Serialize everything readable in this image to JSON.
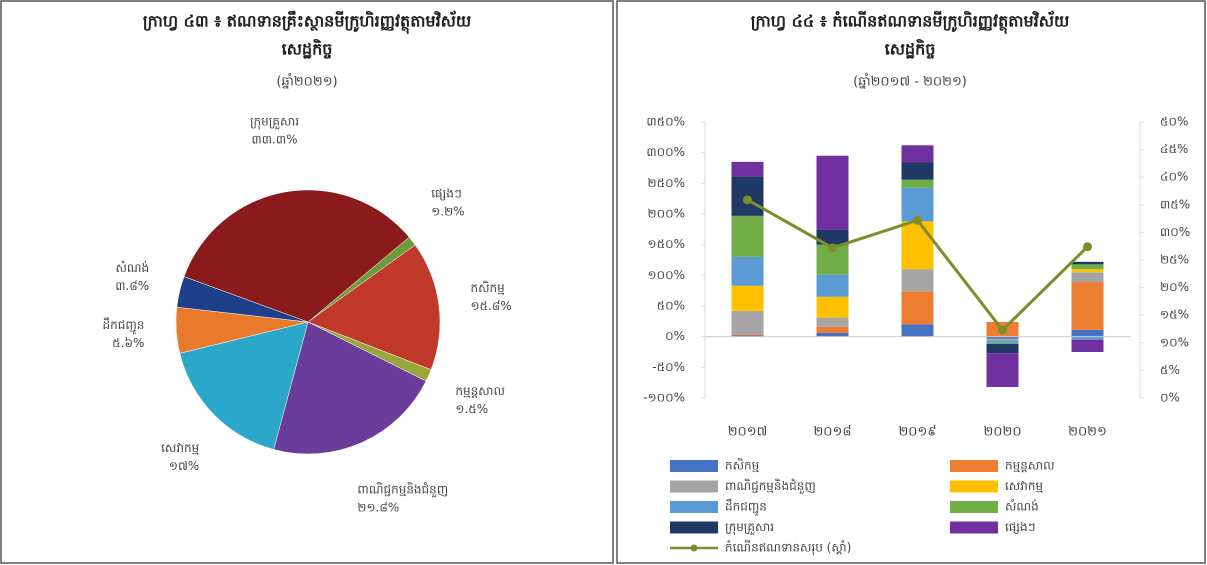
{
  "chart_data": [
    {
      "type": "pie",
      "title": "ក្រាហ្វ ៤៣ ៖ ឥណទានគ្រឹះស្ថានមីក្រូហិរញ្ញវត្ថុតាមវិស័យ",
      "title2": "សេដ្ឋកិច្ច",
      "subtitle": "(ឆ្នាំ២០២១)",
      "categories": [
        "ផ្សេងៗ",
        "កសិកម្ម",
        "កម្មន្តសាល",
        "ពាណិជ្ជកម្មនិងជំនួញ",
        "សេវាកម្ម",
        "ដឹកជញ្ជូន",
        "សំណង់",
        "ក្រុមគ្រួសារ"
      ],
      "values": [
        1.2,
        15.8,
        1.5,
        21.8,
        17,
        5.6,
        3.8,
        33.3
      ],
      "value_labels": [
        "១.២%",
        "១៥.៨%",
        "១.៥%",
        "២១.៨%",
        "១៧%",
        "៥.៦%",
        "៣.៨%",
        "៣៣.៣%"
      ],
      "colors": [
        "#6f9a3a",
        "#c0392b",
        "#9aa53a",
        "#6a3d9a",
        "#2aa7c9",
        "#e8792b",
        "#1f3f8a",
        "#8b1a1a"
      ]
    },
    {
      "type": "bar",
      "stacked": true,
      "title": "ក្រាហ្វ ៤៤ ៖ កំណើនឥណទានមីក្រូហិរញ្ញវត្ថុតាមវិស័យ",
      "title2": "សេដ្ឋកិច្ច",
      "subtitle": "(ឆ្នាំ២០១៧ - ២០២១)",
      "categories": [
        "២០១៧",
        "២០១៨",
        "២០១៩",
        "២០២០",
        "២០២១"
      ],
      "series": [
        {
          "name": "កសិកម្ម",
          "color": "#4472c4",
          "values": [
            2,
            6,
            20,
            -3,
            11
          ]
        },
        {
          "name": "កម្មន្តសាល",
          "color": "#ed7d31",
          "values": [
            2,
            10,
            54,
            24,
            78
          ]
        },
        {
          "name": "ពាណិជ្ជកម្មនិងជំនួញ",
          "color": "#a5a5a5",
          "values": [
            38,
            15,
            36,
            -3,
            16
          ]
        },
        {
          "name": "សេវាកម្ម",
          "color": "#ffc000",
          "values": [
            41,
            34,
            78,
            0,
            5
          ]
        },
        {
          "name": "ដឹកជញ្ជូន",
          "color": "#5b9bd5",
          "values": [
            47,
            36,
            55,
            -4,
            -5
          ]
        },
        {
          "name": "សំណង់",
          "color": "#70ad47",
          "values": [
            67,
            49,
            13,
            -2,
            8
          ]
        },
        {
          "name": "ក្រុមគ្រួសារ",
          "color": "#1f3864",
          "values": [
            64,
            24,
            28,
            -15,
            4
          ]
        },
        {
          "name": "ផ្សេងៗ",
          "color": "#7030a0",
          "values": [
            24,
            121,
            28,
            -55,
            -20
          ]
        },
        {
          "name": "កំណើនឥណទានសរុប (ស្តាំ)",
          "color": "#7f8c2a",
          "type": "line",
          "axis": "y2",
          "values": [
            35.9,
            27.2,
            32.2,
            12.3,
            27.4
          ]
        }
      ],
      "ylim": [
        -100,
        350
      ],
      "yticks": [
        {
          "value": -100,
          "label": "-១០០%"
        },
        {
          "value": -50,
          "label": "-៥០%"
        },
        {
          "value": 0,
          "label": "០%"
        },
        {
          "value": 50,
          "label": "៥០%"
        },
        {
          "value": 100,
          "label": "១០០%"
        },
        {
          "value": 150,
          "label": "១៥០%"
        },
        {
          "value": 200,
          "label": "២០០%"
        },
        {
          "value": 250,
          "label": "២៥០%"
        },
        {
          "value": 300,
          "label": "៣០០%"
        },
        {
          "value": 350,
          "label": "៣៥០%"
        }
      ],
      "y2lim": [
        0,
        50
      ],
      "y2ticks": [
        {
          "value": 0,
          "label": "០%"
        },
        {
          "value": 5,
          "label": "៥%"
        },
        {
          "value": 10,
          "label": "១០%"
        },
        {
          "value": 15,
          "label": "១៥%"
        },
        {
          "value": 20,
          "label": "២០%"
        },
        {
          "value": 25,
          "label": "២៥%"
        },
        {
          "value": 30,
          "label": "៣០%"
        },
        {
          "value": 35,
          "label": "៣៥%"
        },
        {
          "value": 40,
          "label": "៤០%"
        },
        {
          "value": 45,
          "label": "៤៥%"
        },
        {
          "value": 50,
          "label": "៥០%"
        }
      ]
    }
  ]
}
